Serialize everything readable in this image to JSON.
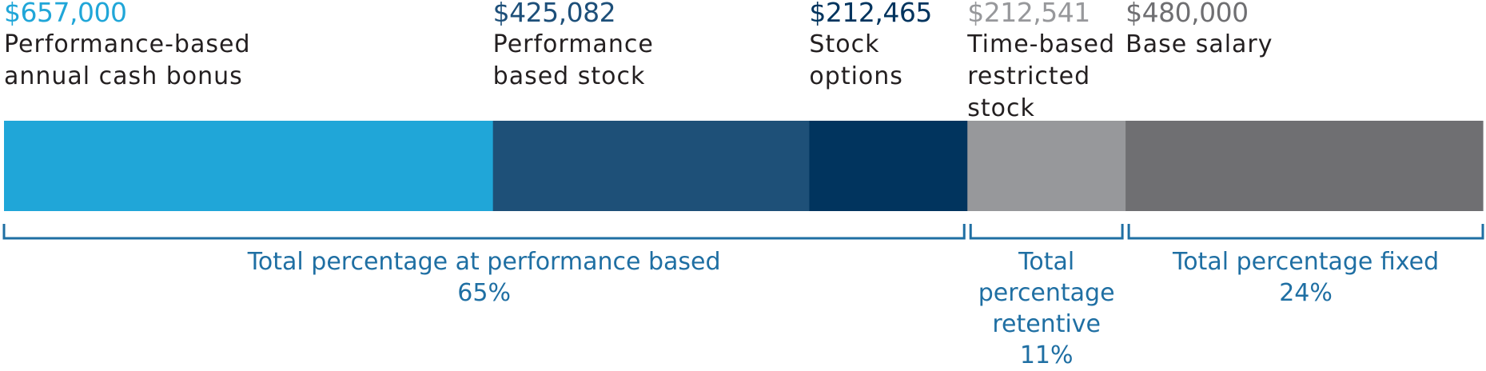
{
  "chart_data": {
    "type": "bar",
    "orientation": "horizontal-stacked",
    "segments": [
      {
        "value_label": "$657,000",
        "value": 657000,
        "label": "Performance-based\nannual cash bonus",
        "color": "#20a6d8",
        "value_color": "#20a6d8"
      },
      {
        "value_label": "$425,082",
        "value": 425082,
        "label": "Performance\nbased stock",
        "color": "#1e5078",
        "value_color": "#1d4f79"
      },
      {
        "value_label": "$212,465",
        "value": 212465,
        "label": "Stock\noptions",
        "color": "#01345e",
        "value_color": "#01345e"
      },
      {
        "value_label": "$212,541",
        "value": 212541,
        "label": "Time-based\nrestricted\nstock",
        "color": "#97989b",
        "value_color": "#97989b"
      },
      {
        "value_label": "$480,000",
        "value": 480000,
        "label": "Base salary",
        "color": "#6f6f72",
        "value_color": "#6f6f72"
      }
    ],
    "groups": [
      {
        "label": "Total percentage at performance based\n65%",
        "segments": [
          0,
          1,
          2
        ]
      },
      {
        "label": "Total\npercentage\nretentive\n11%",
        "segments": [
          3
        ]
      },
      {
        "label": "Total percentage fixed\n24%",
        "segments": [
          4
        ]
      }
    ],
    "colors": {
      "bracket": "#1f6fa3",
      "text": "#231f20"
    }
  }
}
